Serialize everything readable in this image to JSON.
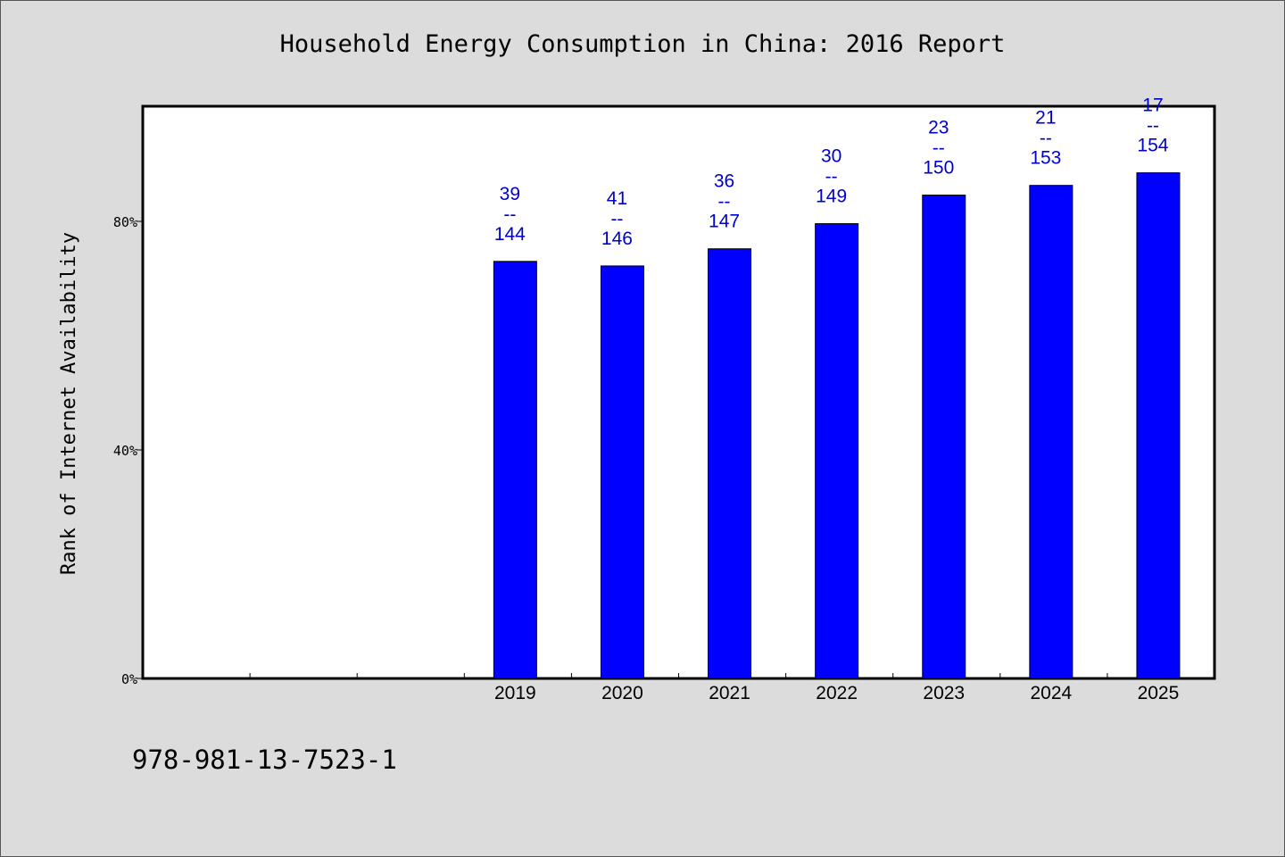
{
  "chart_data": {
    "type": "bar",
    "title": "Household Energy Consumption in China: 2016 Report",
    "ylabel": "Rank of Internet Availability",
    "xlabel": "",
    "categories": [
      "",
      "",
      "",
      "2019",
      "2020",
      "2021",
      "2022",
      "2023",
      "2024",
      "2025"
    ],
    "values": [
      null,
      null,
      null,
      73,
      72.2,
      75.2,
      79.6,
      84.6,
      86.3,
      88.5
    ],
    "bar_labels": [
      {
        "top": "39",
        "sep": "--",
        "bottom": "144"
      },
      {
        "top": "41",
        "sep": "--",
        "bottom": "146"
      },
      {
        "top": "36",
        "sep": "--",
        "bottom": "147"
      },
      {
        "top": "30",
        "sep": "--",
        "bottom": "149"
      },
      {
        "top": "23",
        "sep": "--",
        "bottom": "150"
      },
      {
        "top": "21",
        "sep": "--",
        "bottom": "153"
      },
      {
        "top": "17",
        "sep": "--",
        "bottom": "154"
      }
    ],
    "ylim": [
      0,
      100
    ],
    "yticks": [
      {
        "value": 0,
        "label": "0%"
      },
      {
        "value": 40,
        "label": "40%"
      },
      {
        "value": 80,
        "label": "80%"
      }
    ],
    "grid": false,
    "legend": "none",
    "bar_color": "#0000ff",
    "label_color": "#0000cc"
  },
  "footer": {
    "code": "978-981-13-7523-1"
  }
}
